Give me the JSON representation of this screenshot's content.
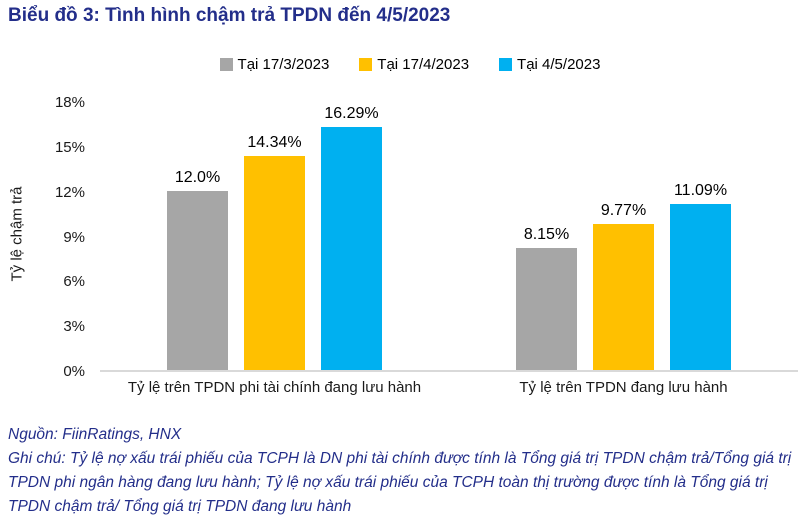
{
  "header": {
    "title": "Biểu đồ 3: Tình hình chậm trả TPDN đến 4/5/2023",
    "title_color": "#232e8a"
  },
  "chart_data": {
    "type": "bar",
    "title": "Biểu đồ 3: Tình hình chậm trả TPDN đến 4/5/2023",
    "xlabel": "",
    "ylabel": "Tỷ lệ chậm trả",
    "ylim": [
      0,
      18
    ],
    "ytick_labels": [
      "0%",
      "3%",
      "6%",
      "9%",
      "12%",
      "15%",
      "18%"
    ],
    "grid": false,
    "legend_position": "top",
    "categories": [
      "Tỷ lệ trên TPDN phi tài chính đang lưu hành",
      "Tỷ lệ trên TPDN đang lưu hành"
    ],
    "series": [
      {
        "name": "Tại 17/3/2023",
        "color": "#a6a6a6",
        "values": [
          12.0,
          8.15
        ],
        "labels": [
          "12.0%",
          "8.15%"
        ]
      },
      {
        "name": "Tại 17/4/2023",
        "color": "#ffc000",
        "values": [
          14.34,
          9.77
        ],
        "labels": [
          "14.34%",
          "9.77%"
        ]
      },
      {
        "name": "Tại 4/5/2023",
        "color": "#00b0f0",
        "values": [
          16.29,
          11.09
        ],
        "labels": [
          "16.29%",
          "11.09%"
        ]
      }
    ],
    "axis_line_color": "#d9d9d9"
  },
  "footer": {
    "source": "Nguồn: FiinRatings, HNX",
    "note": "Ghi chú: Tỷ lệ nợ xấu trái phiếu của TCPH là DN phi tài chính được tính là Tổng giá trị TPDN chậm trả/Tổng giá trị TPDN phi ngân hàng đang lưu hành; Tỷ lệ nợ xấu trái phiếu của TCPH toàn thị trường được tính là Tổng giá trị TPDN chậm trả/ Tổng giá trị TPDN đang lưu hành",
    "text_color": "#232e8a"
  }
}
